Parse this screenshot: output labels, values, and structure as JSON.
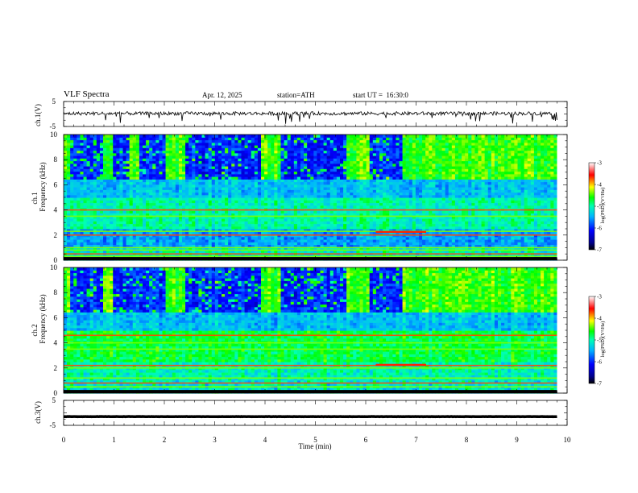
{
  "header": {
    "title": "VLF Spectra",
    "date": "Apr. 12, 2025",
    "station": "station=ATH",
    "start": "start UT =  16:30:0"
  },
  "colors": {
    "trace": "#000000",
    "colormap": [
      "#000000",
      "#00008b",
      "#0000ff",
      "#00b4ff",
      "#00ffb4",
      "#00ff00",
      "#ffff00",
      "#ff0000",
      "#ffffff"
    ]
  },
  "chart_data": [
    {
      "type": "line",
      "panel": "ch1-waveform",
      "ylabel": "ch.1(V)",
      "ylim": [
        -5,
        5
      ],
      "yticks": [
        "5",
        "-5"
      ],
      "xlim": [
        0,
        10
      ],
      "trend": "noisy trace near 0 V with small negative spikes"
    },
    {
      "type": "heatmap",
      "panel": "ch1-spectrogram",
      "ylabel_top": "ch.1",
      "ylabel": "Frequency (kHz)",
      "ylim": [
        0,
        10
      ],
      "yticks": [
        "0",
        "2",
        "4",
        "6",
        "8",
        "10"
      ],
      "xlim": [
        0,
        10
      ],
      "data_end_min": 9.8,
      "colorbar": {
        "label": "log(PSD)(V²/Hz)",
        "range": [
          -7,
          -3
        ],
        "ticks": [
          "-3",
          "-4",
          "-5",
          "-6",
          "-7"
        ]
      },
      "dark_bursts_min": [
        [
          0.1,
          0.8
        ],
        [
          1.0,
          1.3
        ],
        [
          1.5,
          2.0
        ],
        [
          2.4,
          3.9
        ],
        [
          4.3,
          5.6
        ],
        [
          6.1,
          6.7
        ]
      ],
      "lines_khz": [
        0.3,
        0.5,
        0.8,
        1.0,
        2.0,
        2.3,
        3.5,
        4.0
      ]
    },
    {
      "type": "heatmap",
      "panel": "ch2-spectrogram",
      "ylabel_top": "ch.2",
      "ylabel": "Frequency (kHz)",
      "ylim": [
        0,
        10
      ],
      "yticks": [
        "0",
        "2",
        "4",
        "6",
        "8",
        "10"
      ],
      "xlim": [
        0,
        10
      ],
      "data_end_min": 9.8,
      "colorbar": {
        "label": "log(PSD)(V²/Hz)",
        "range": [
          -7,
          -3
        ],
        "ticks": [
          "-3",
          "-4",
          "-5",
          "-6",
          "-7"
        ]
      },
      "dark_bursts_min": [
        [
          0.1,
          0.8
        ],
        [
          1.0,
          2.0
        ],
        [
          2.4,
          3.9
        ],
        [
          4.3,
          5.6
        ],
        [
          6.1,
          6.7
        ]
      ],
      "lines_khz": [
        0.5,
        0.8,
        1.2,
        2.0,
        2.2,
        3.5,
        4.0,
        4.6
      ]
    },
    {
      "type": "line",
      "panel": "ch3-waveform",
      "ylabel": "ch.3(V)",
      "ylim": [
        -5,
        5
      ],
      "yticks": [
        "5",
        "-5"
      ],
      "xlim": [
        0,
        10
      ],
      "trend": "flat thick trace near -1.5 V",
      "xlabel": "Time (min)",
      "xticks": [
        "0",
        "1",
        "2",
        "3",
        "4",
        "5",
        "6",
        "7",
        "8",
        "9",
        "10"
      ]
    }
  ]
}
